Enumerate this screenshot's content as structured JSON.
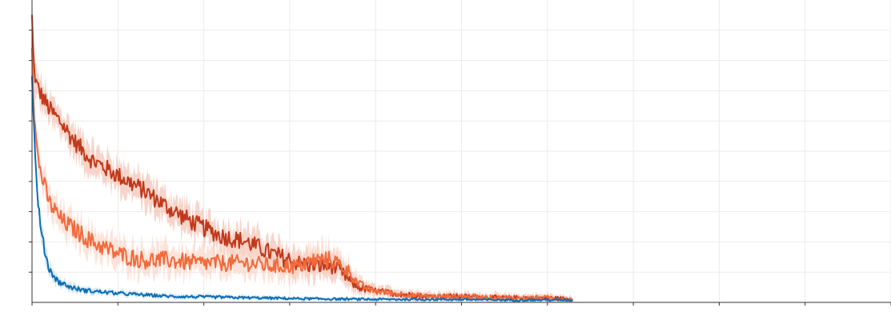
{
  "chart_data": {
    "type": "line",
    "title": "",
    "xlabel": "",
    "ylabel": "",
    "grid": true,
    "legend": "none",
    "xlim": [
      0,
      1000
    ],
    "ylim": [
      0,
      1.0
    ],
    "x_gridlines": [
      0,
      100,
      200,
      300,
      400,
      500,
      600,
      700,
      800,
      900,
      1000
    ],
    "y_gridlines": [
      0.1,
      0.2,
      0.3,
      0.4,
      0.5,
      0.6,
      0.7,
      0.8,
      0.9
    ],
    "x_end": 630,
    "series": [
      {
        "color": "#c1391a",
        "band_color": "#f1b7a7",
        "x": [
          0,
          2,
          5,
          10,
          20,
          35,
          50,
          70,
          100,
          130,
          160,
          190,
          220,
          250,
          280,
          310,
          330,
          350,
          360,
          370,
          380,
          395,
          420,
          460,
          500,
          550,
          600,
          630
        ],
        "y": [
          0.94,
          0.78,
          0.72,
          0.69,
          0.64,
          0.59,
          0.53,
          0.47,
          0.42,
          0.37,
          0.31,
          0.26,
          0.22,
          0.2,
          0.16,
          0.13,
          0.12,
          0.12,
          0.1,
          0.07,
          0.05,
          0.04,
          0.03,
          0.02,
          0.02,
          0.015,
          0.015,
          0.01
        ],
        "noise": 0.03
      },
      {
        "color": "#f26a3b",
        "band_color": "#fbd0bf",
        "x": [
          0,
          2,
          5,
          10,
          20,
          35,
          50,
          70,
          100,
          130,
          160,
          190,
          220,
          250,
          280,
          310,
          330,
          350,
          360,
          370,
          380,
          395,
          420,
          460,
          500,
          550,
          600,
          630
        ],
        "y": [
          0.87,
          0.65,
          0.52,
          0.43,
          0.33,
          0.27,
          0.24,
          0.2,
          0.16,
          0.14,
          0.14,
          0.13,
          0.13,
          0.13,
          0.12,
          0.12,
          0.14,
          0.14,
          0.12,
          0.1,
          0.06,
          0.04,
          0.03,
          0.02,
          0.02,
          0.015,
          0.015,
          0.01
        ],
        "noise": 0.03
      },
      {
        "color": "#0a6fb5",
        "band_color": "#b9d5ee",
        "x": [
          0,
          2,
          4,
          7,
          10,
          15,
          20,
          30,
          45,
          60,
          80,
          100,
          130,
          160,
          200,
          260,
          320,
          400,
          480,
          560,
          630
        ],
        "y": [
          0.75,
          0.6,
          0.45,
          0.34,
          0.24,
          0.17,
          0.11,
          0.07,
          0.05,
          0.04,
          0.035,
          0.03,
          0.025,
          0.02,
          0.018,
          0.015,
          0.012,
          0.01,
          0.01,
          0.008,
          0.008
        ],
        "noise": 0.018
      }
    ]
  }
}
